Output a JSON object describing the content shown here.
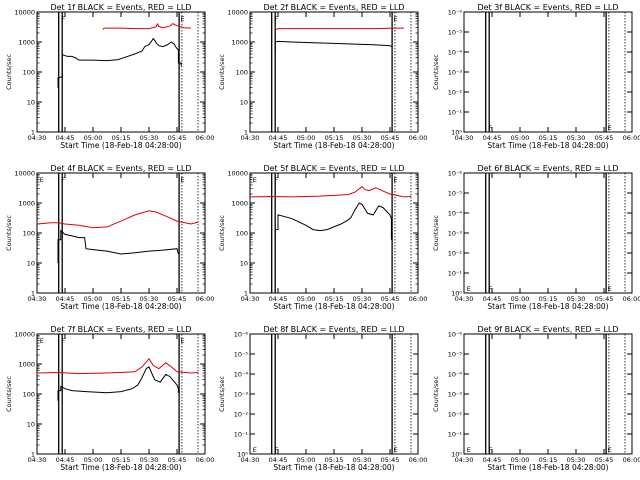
{
  "chart_data": [
    {
      "type": "line",
      "title": "Det 1f BLACK = Events, RED = LLD",
      "xlabel": "Start Time (18-Feb-18 04:28:00)",
      "ylabel": "Counts/sec",
      "x_ticks": [
        "04:30",
        "04:45",
        "05:00",
        "05:15",
        "05:30",
        "05:45",
        "06:00"
      ],
      "y_ticks": [
        "1",
        "10",
        "100",
        "1000",
        "10000"
      ],
      "ylim": [
        1,
        10000
      ],
      "y_scale": "log",
      "markers": [
        "F",
        "E"
      ],
      "series": [
        {
          "color": "#e00000",
          "points": [
            [
              47,
              2600
            ],
            [
              48,
              2900
            ],
            [
              50,
              2900
            ],
            [
              60,
              2900
            ],
            [
              70,
              2800
            ],
            [
              80,
              2800
            ],
            [
              85,
              3200
            ],
            [
              86,
              4000
            ],
            [
              87,
              3300
            ],
            [
              90,
              3000
            ],
            [
              95,
              3400
            ],
            [
              97,
              4100
            ],
            [
              100,
              3500
            ],
            [
              105,
              3000
            ],
            [
              110,
              2900
            ]
          ]
        },
        {
          "color": "#000000",
          "points": [
            [
              15,
              30
            ],
            [
              15,
              65
            ],
            [
              16,
              65
            ],
            [
              18,
              70
            ],
            [
              18,
              380
            ],
            [
              20,
              350
            ],
            [
              22,
              330
            ],
            [
              25,
              330
            ],
            [
              28,
              290
            ],
            [
              30,
              250
            ],
            [
              40,
              250
            ],
            [
              50,
              240
            ],
            [
              58,
              260
            ],
            [
              62,
              300
            ],
            [
              70,
              400
            ],
            [
              75,
              500
            ],
            [
              77,
              700
            ],
            [
              80,
              820
            ],
            [
              82,
              1100
            ],
            [
              83,
              1300
            ],
            [
              84,
              1150
            ],
            [
              85,
              950
            ],
            [
              87,
              750
            ],
            [
              90,
              700
            ],
            [
              93,
              800
            ],
            [
              96,
              1000
            ],
            [
              98,
              850
            ],
            [
              100,
              600
            ],
            [
              101,
              550
            ],
            [
              101,
              200
            ],
            [
              103,
              200
            ],
            [
              103,
              160
            ]
          ]
        }
      ]
    },
    {
      "type": "line",
      "title": "Det 2f BLACK = Events, RED = LLD",
      "xlabel": "Start Time (18-Feb-18 04:28:00)",
      "ylabel": "Counts/sec",
      "x_ticks": [
        "04:30",
        "04:45",
        "05:00",
        "05:15",
        "05:30",
        "05:45",
        "06:00"
      ],
      "y_ticks": [
        "1",
        "10",
        "100",
        "1000",
        "10000"
      ],
      "ylim": [
        1,
        10000
      ],
      "y_scale": "log",
      "markers": [
        "F",
        "E"
      ],
      "series": [
        {
          "color": "#e00000",
          "points": [
            [
              18,
              2500
            ],
            [
              20,
              2800
            ],
            [
              30,
              2800
            ],
            [
              50,
              2800
            ],
            [
              70,
              2800
            ],
            [
              90,
              2800
            ],
            [
              103,
              2900
            ],
            [
              110,
              2900
            ]
          ]
        },
        {
          "color": "#000000",
          "points": [
            [
              18,
              400
            ],
            [
              18,
              1000
            ],
            [
              20,
              1050
            ],
            [
              30,
              1000
            ],
            [
              45,
              950
            ],
            [
              60,
              900
            ],
            [
              75,
              850
            ],
            [
              90,
              800
            ],
            [
              100,
              750
            ],
            [
              101,
              700
            ]
          ]
        }
      ]
    },
    {
      "type": "line",
      "title": "Det 3f BLACK = Events, RED = LLD",
      "xlabel": "Start Time (18-Feb-18 04:28:00)",
      "ylabel": "Counts/sec",
      "x_ticks": [
        "04:30",
        "04:45",
        "05:00",
        "05:15",
        "05:30",
        "05:45",
        "06:00"
      ],
      "y_ticks": [
        "10⁰",
        "10⁻¹",
        "10⁻²",
        "10⁻³",
        "10⁻⁴",
        "10⁻⁵",
        "10⁻⁶"
      ],
      "ylim": [
        1e-06,
        1
      ],
      "y_scale": "log",
      "y_reversed": true,
      "markers": [
        "F",
        "E"
      ],
      "series": []
    },
    {
      "type": "line",
      "title": "Det 4f BLACK = Events, RED = LLD",
      "xlabel": "Start Time (18-Feb-18 04:28:00)",
      "ylabel": "Counts/sec",
      "x_ticks": [
        "04:30",
        "04:45",
        "05:00",
        "05:15",
        "05:30",
        "05:45",
        "06:00"
      ],
      "y_ticks": [
        "1",
        "10",
        "100",
        "1000",
        "10000"
      ],
      "ylim": [
        1,
        10000
      ],
      "y_scale": "log",
      "markers": [
        "E",
        "F",
        "E"
      ],
      "series": [
        {
          "color": "#e00000",
          "points": [
            [
              0,
              200
            ],
            [
              10,
              220
            ],
            [
              15,
              220
            ],
            [
              20,
              200
            ],
            [
              30,
              180
            ],
            [
              40,
              150
            ],
            [
              50,
              160
            ],
            [
              60,
              250
            ],
            [
              70,
              400
            ],
            [
              80,
              550
            ],
            [
              85,
              500
            ],
            [
              90,
              400
            ],
            [
              100,
              250
            ],
            [
              110,
              200
            ],
            [
              115,
              230
            ]
          ]
        },
        {
          "color": "#000000",
          "points": [
            [
              15,
              10
            ],
            [
              15,
              60
            ],
            [
              17,
              60
            ],
            [
              17,
              120
            ],
            [
              20,
              90
            ],
            [
              25,
              80
            ],
            [
              30,
              70
            ],
            [
              34,
              70
            ],
            [
              35,
              30
            ],
            [
              40,
              28
            ],
            [
              50,
              25
            ],
            [
              60,
              20
            ],
            [
              70,
              22
            ],
            [
              80,
              25
            ],
            [
              90,
              27
            ],
            [
              100,
              30
            ],
            [
              101,
              20
            ]
          ]
        }
      ]
    },
    {
      "type": "line",
      "title": "Det 5f BLACK = Events, RED = LLD",
      "xlabel": "Start Time (18-Feb-18 04:28:00)",
      "ylabel": "Counts/sec",
      "x_ticks": [
        "04:30",
        "04:45",
        "05:00",
        "05:15",
        "05:30",
        "05:45",
        "06:00"
      ],
      "y_ticks": [
        "1",
        "10",
        "100",
        "1000",
        "10000"
      ],
      "ylim": [
        1,
        10000
      ],
      "y_scale": "log",
      "markers": [
        "E",
        "F",
        "E"
      ],
      "series": [
        {
          "color": "#e00000",
          "points": [
            [
              0,
              1600
            ],
            [
              15,
              1650
            ],
            [
              30,
              1600
            ],
            [
              50,
              1700
            ],
            [
              70,
              1900
            ],
            [
              75,
              2300
            ],
            [
              80,
              3500
            ],
            [
              82,
              2800
            ],
            [
              85,
              2600
            ],
            [
              90,
              3200
            ],
            [
              95,
              2500
            ],
            [
              100,
              2000
            ],
            [
              110,
              1600
            ],
            [
              115,
              1650
            ]
          ]
        },
        {
          "color": "#000000",
          "points": [
            [
              18,
              60
            ],
            [
              18,
              130
            ],
            [
              20,
              130
            ],
            [
              20,
              400
            ],
            [
              25,
              350
            ],
            [
              30,
              300
            ],
            [
              40,
              180
            ],
            [
              45,
              130
            ],
            [
              50,
              120
            ],
            [
              55,
              130
            ],
            [
              65,
              200
            ],
            [
              70,
              270
            ],
            [
              72,
              320
            ],
            [
              75,
              600
            ],
            [
              78,
              1000
            ],
            [
              80,
              900
            ],
            [
              84,
              450
            ],
            [
              88,
              400
            ],
            [
              92,
              800
            ],
            [
              95,
              700
            ],
            [
              100,
              400
            ],
            [
              101,
              300
            ],
            [
              101,
              60
            ]
          ]
        }
      ]
    },
    {
      "type": "line",
      "title": "Det 6f BLACK = Events, RED = LLD",
      "xlabel": "Start Time (18-Feb-18 04:28:00)",
      "ylabel": "Counts/sec",
      "x_ticks": [
        "04:30",
        "04:45",
        "05:00",
        "05:15",
        "05:30",
        "05:45",
        "06:00"
      ],
      "y_ticks": [
        "10⁰",
        "10⁻¹",
        "10⁻²",
        "10⁻³",
        "10⁻⁴",
        "10⁻⁵",
        "10⁻⁶"
      ],
      "ylim": [
        1e-06,
        1
      ],
      "y_scale": "log",
      "y_reversed": true,
      "markers": [
        "E",
        "F",
        "E"
      ],
      "series": []
    },
    {
      "type": "line",
      "title": "Det 7f BLACK = Events, RED = LLD",
      "xlabel": "Start Time (18-Feb-18 04:28:00)",
      "ylabel": "Counts/sec",
      "x_ticks": [
        "04:30",
        "04:45",
        "05:00",
        "05:15",
        "05:30",
        "05:45",
        "06:00"
      ],
      "y_ticks": [
        "1",
        "10",
        "100",
        "1000",
        "10000"
      ],
      "ylim": [
        1,
        10000
      ],
      "y_scale": "log",
      "markers": [
        "E",
        "F",
        "E"
      ],
      "series": [
        {
          "color": "#e00000",
          "points": [
            [
              0,
              500
            ],
            [
              15,
              520
            ],
            [
              30,
              480
            ],
            [
              50,
              500
            ],
            [
              70,
              550
            ],
            [
              75,
              800
            ],
            [
              80,
              1500
            ],
            [
              83,
              900
            ],
            [
              87,
              700
            ],
            [
              92,
              1100
            ],
            [
              96,
              800
            ],
            [
              100,
              550
            ],
            [
              110,
              500
            ],
            [
              115,
              520
            ]
          ]
        },
        {
          "color": "#000000",
          "points": [
            [
              15,
              60
            ],
            [
              15,
              130
            ],
            [
              17,
              130
            ],
            [
              17,
              180
            ],
            [
              20,
              150
            ],
            [
              25,
              130
            ],
            [
              35,
              120
            ],
            [
              50,
              110
            ],
            [
              60,
              120
            ],
            [
              68,
              150
            ],
            [
              72,
              200
            ],
            [
              75,
              350
            ],
            [
              78,
              700
            ],
            [
              80,
              800
            ],
            [
              84,
              300
            ],
            [
              88,
              250
            ],
            [
              92,
              450
            ],
            [
              95,
              380
            ],
            [
              100,
              200
            ],
            [
              101,
              150
            ],
            [
              101,
              110
            ]
          ]
        }
      ]
    },
    {
      "type": "line",
      "title": "Det 8f BLACK = Events, RED = LLD",
      "xlabel": "Start Time (18-Feb-18 04:28:00)",
      "ylabel": "Counts/sec",
      "x_ticks": [
        "04:30",
        "04:45",
        "05:00",
        "05:15",
        "05:30",
        "05:45",
        "06:00"
      ],
      "y_ticks": [
        "10⁰",
        "10⁻¹",
        "10⁻²",
        "10⁻³",
        "10⁻⁴",
        "10⁻⁵",
        "10⁻⁶"
      ],
      "ylim": [
        1e-06,
        1
      ],
      "y_scale": "log",
      "y_reversed": true,
      "markers": [
        "E",
        "F",
        "E"
      ],
      "series": []
    },
    {
      "type": "line",
      "title": "Det 9f BLACK = Events, RED = LLD",
      "xlabel": "Start Time (18-Feb-18 04:28:00)",
      "ylabel": "Counts/sec",
      "x_ticks": [
        "04:30",
        "04:45",
        "05:00",
        "05:15",
        "05:30",
        "05:45",
        "06:00"
      ],
      "y_ticks": [
        "10⁰",
        "10⁻¹",
        "10⁻²",
        "10⁻³",
        "10⁻⁴",
        "10⁻⁵",
        "10⁻⁶"
      ],
      "ylim": [
        1e-06,
        1
      ],
      "y_scale": "log",
      "y_reversed": true,
      "markers": [
        "E",
        "F",
        "E"
      ],
      "series": []
    }
  ]
}
